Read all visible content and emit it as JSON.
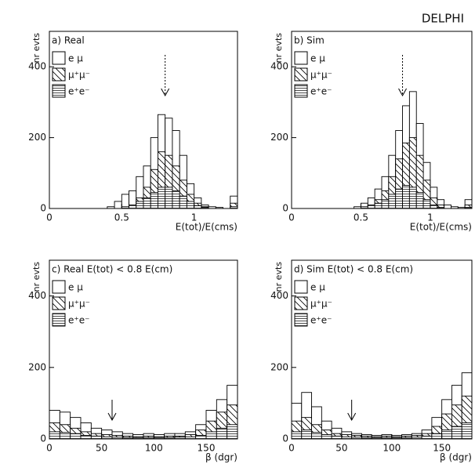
{
  "header": {
    "title": "DELPHI"
  },
  "chart_data": [
    {
      "type": "histogram",
      "title": "a) Real",
      "xlabel": "E(tot)/E(cms)",
      "ylabel": "nr evts",
      "bins": [
        0,
        0.05,
        0.1,
        0.15,
        0.2,
        0.25,
        0.3,
        0.35,
        0.4,
        0.45,
        0.5,
        0.55,
        0.6,
        0.65,
        0.7,
        0.75,
        0.8,
        0.85,
        0.9,
        0.95,
        1,
        1.05,
        1.1,
        1.15,
        1.2,
        1.25,
        1.3
      ],
      "series": [
        {
          "name": "e μ",
          "color": "#000",
          "pattern": "none",
          "values": [
            0,
            0,
            0,
            0,
            0,
            0,
            0,
            0,
            5,
            20,
            40,
            50,
            90,
            120,
            200,
            265,
            255,
            220,
            150,
            70,
            30,
            10,
            5,
            3,
            0,
            35
          ]
        },
        {
          "name": "μ⁺μ⁻",
          "color": "#000",
          "pattern": "diagonal",
          "values": [
            0,
            0,
            0,
            0,
            0,
            0,
            0,
            0,
            0,
            0,
            0,
            10,
            30,
            60,
            110,
            160,
            150,
            120,
            80,
            40,
            15,
            5,
            0,
            0,
            0,
            15
          ]
        },
        {
          "name": "e⁺e⁻",
          "color": "#000",
          "pattern": "horizontal",
          "values": [
            0,
            0,
            0,
            0,
            0,
            0,
            0,
            0,
            0,
            0,
            5,
            10,
            20,
            30,
            45,
            60,
            60,
            50,
            35,
            20,
            8,
            3,
            0,
            0,
            0,
            5
          ]
        }
      ],
      "xlim": [
        0,
        1.3
      ],
      "ylim": [
        0,
        500
      ],
      "xticks": [
        0,
        0.5,
        1
      ],
      "yticks": [
        0,
        200,
        400
      ],
      "arrow": {
        "x": 0.8,
        "style": "dotted"
      }
    },
    {
      "type": "histogram",
      "title": "b) Sim",
      "xlabel": "E(tot)/E(cms)",
      "ylabel": "nr evts",
      "bins": [
        0,
        0.05,
        0.1,
        0.15,
        0.2,
        0.25,
        0.3,
        0.35,
        0.4,
        0.45,
        0.5,
        0.55,
        0.6,
        0.65,
        0.7,
        0.75,
        0.8,
        0.85,
        0.9,
        0.95,
        1,
        1.05,
        1.1,
        1.15,
        1.2,
        1.25,
        1.3
      ],
      "series": [
        {
          "name": "e μ",
          "color": "#000",
          "pattern": "none",
          "values": [
            0,
            0,
            0,
            0,
            0,
            0,
            0,
            0,
            0,
            5,
            15,
            30,
            55,
            90,
            150,
            220,
            290,
            330,
            240,
            130,
            60,
            25,
            10,
            5,
            3,
            25
          ]
        },
        {
          "name": "μ⁺μ⁻",
          "color": "#000",
          "pattern": "diagonal",
          "values": [
            0,
            0,
            0,
            0,
            0,
            0,
            0,
            0,
            0,
            0,
            0,
            10,
            25,
            50,
            90,
            140,
            185,
            200,
            150,
            80,
            30,
            10,
            0,
            0,
            0,
            10
          ]
        },
        {
          "name": "e⁺e⁻",
          "color": "#000",
          "pattern": "horizontal",
          "values": [
            0,
            0,
            0,
            0,
            0,
            0,
            0,
            0,
            0,
            0,
            5,
            10,
            15,
            25,
            40,
            55,
            65,
            60,
            45,
            25,
            10,
            3,
            0,
            0,
            0,
            3
          ]
        }
      ],
      "xlim": [
        0,
        1.3
      ],
      "ylim": [
        0,
        500
      ],
      "xticks": [
        0,
        0.5,
        1
      ],
      "yticks": [
        0,
        200,
        400
      ],
      "arrow": {
        "x": 0.8,
        "style": "dotted"
      }
    },
    {
      "type": "histogram",
      "title": "c) Real E(tot) < 0.8 E(cm)",
      "xlabel": "β (dgr)",
      "ylabel": "nr evts",
      "bins": [
        0,
        10,
        20,
        30,
        40,
        50,
        60,
        70,
        80,
        90,
        100,
        110,
        120,
        130,
        140,
        150,
        160,
        170,
        180
      ],
      "series": [
        {
          "name": "e μ",
          "color": "#000",
          "pattern": "none",
          "values": [
            80,
            75,
            60,
            45,
            30,
            25,
            20,
            15,
            12,
            15,
            12,
            15,
            15,
            20,
            40,
            80,
            110,
            150
          ]
        },
        {
          "name": "μ⁺μ⁻",
          "color": "#000",
          "pattern": "diagonal",
          "values": [
            45,
            40,
            30,
            20,
            15,
            12,
            10,
            8,
            6,
            8,
            6,
            8,
            8,
            12,
            25,
            50,
            75,
            95
          ]
        },
        {
          "name": "e⁺e⁻",
          "color": "#000",
          "pattern": "horizontal",
          "values": [
            20,
            18,
            15,
            10,
            8,
            6,
            5,
            4,
            4,
            4,
            4,
            4,
            5,
            6,
            10,
            20,
            30,
            40
          ]
        }
      ],
      "xlim": [
        0,
        180
      ],
      "ylim": [
        0,
        500
      ],
      "xticks": [
        0,
        50,
        100,
        150
      ],
      "yticks": [
        0,
        200,
        400
      ],
      "arrow": {
        "x": 60,
        "style": "solid"
      }
    },
    {
      "type": "histogram",
      "title": "d) Sim E(tot) < 0.8 E(cm)",
      "xlabel": "β (dgr)",
      "ylabel": "nr evts",
      "bins": [
        0,
        10,
        20,
        30,
        40,
        50,
        60,
        70,
        80,
        90,
        100,
        110,
        120,
        130,
        140,
        150,
        160,
        170,
        180
      ],
      "series": [
        {
          "name": "e μ",
          "color": "#000",
          "pattern": "none",
          "values": [
            100,
            130,
            90,
            50,
            30,
            20,
            15,
            12,
            10,
            12,
            10,
            12,
            15,
            25,
            60,
            110,
            150,
            185
          ]
        },
        {
          "name": "μ⁺μ⁻",
          "color": "#000",
          "pattern": "diagonal",
          "values": [
            50,
            60,
            40,
            25,
            15,
            12,
            10,
            8,
            6,
            8,
            6,
            8,
            10,
            15,
            35,
            70,
            95,
            120
          ]
        },
        {
          "name": "e⁺e⁻",
          "color": "#000",
          "pattern": "horizontal",
          "values": [
            20,
            25,
            18,
            12,
            8,
            6,
            5,
            4,
            4,
            4,
            4,
            4,
            5,
            8,
            15,
            25,
            35,
            45
          ]
        }
      ],
      "xlim": [
        0,
        180
      ],
      "ylim": [
        0,
        500
      ],
      "xticks": [
        0,
        50,
        100,
        150
      ],
      "yticks": [
        0,
        200,
        400
      ],
      "arrow": {
        "x": 60,
        "style": "solid"
      }
    }
  ]
}
